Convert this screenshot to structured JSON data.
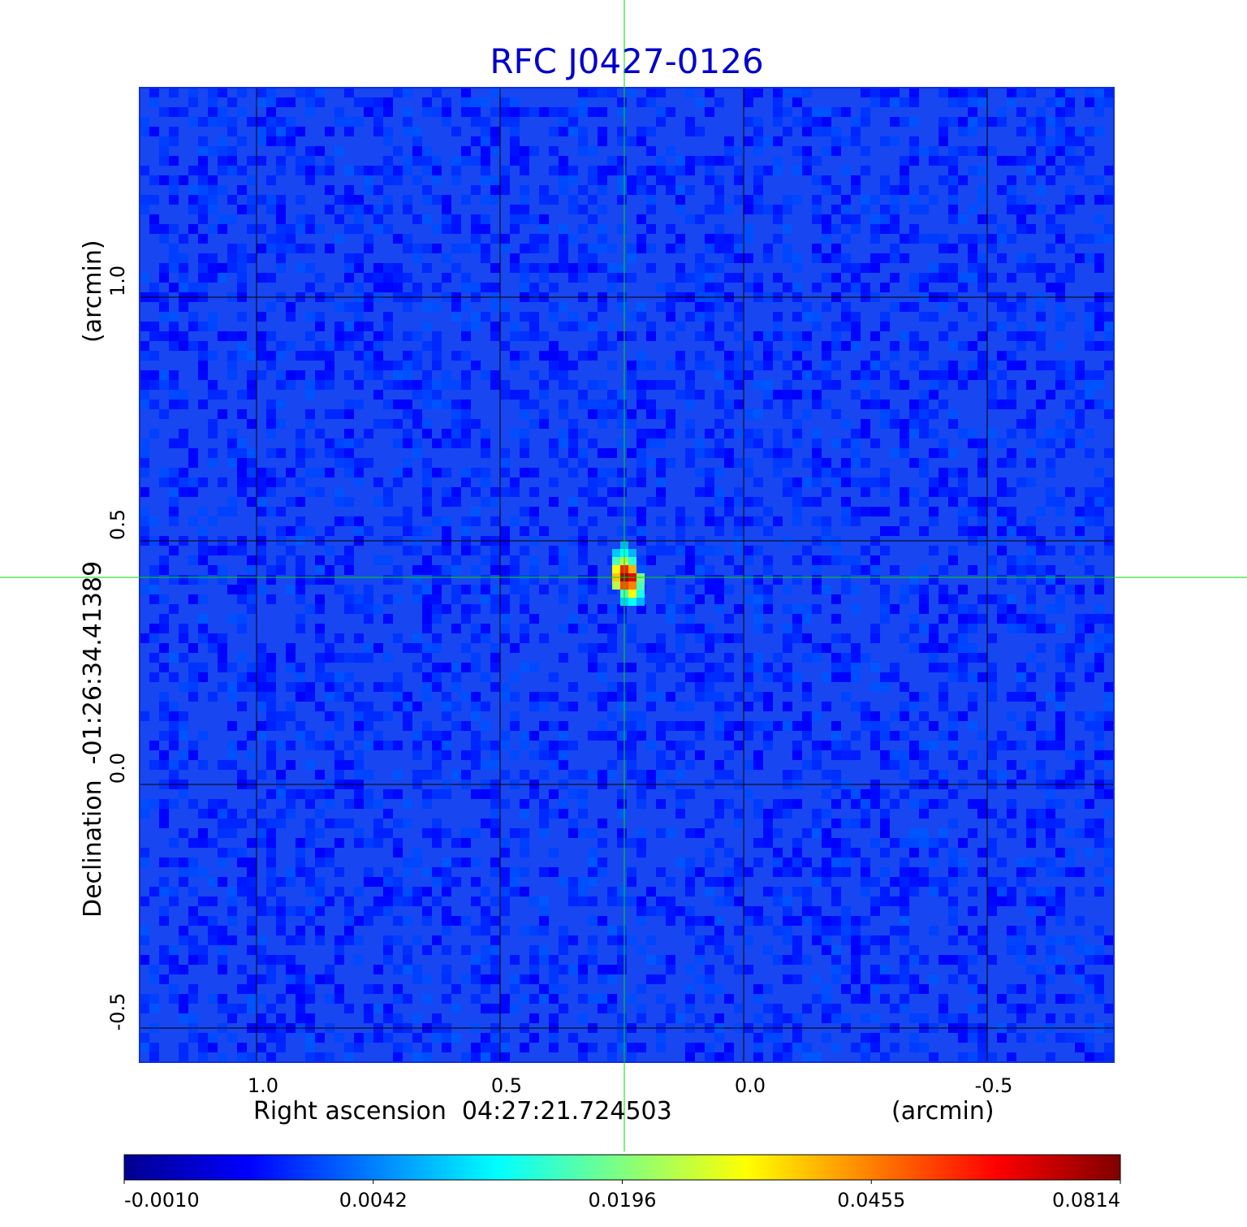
{
  "chart_data": {
    "type": "heatmap",
    "title": "RFC J0427-0126",
    "title_color": "#0000cc",
    "xlabel": "Right ascension  04:27:21.724503",
    "xunit": "(arcmin)",
    "ylabel": "Declination  -01:26:34.41389",
    "yunit": "(arcmin)",
    "xlim": [
      1.24,
      -0.76
    ],
    "ylim": [
      -0.57,
      1.43
    ],
    "x_ticks": [
      1.0,
      0.5,
      0.0,
      -0.5
    ],
    "x_tick_labels": [
      "1.0",
      "0.5",
      "0.0",
      "-0.5"
    ],
    "y_ticks": [
      1.0,
      0.5,
      0.0,
      -0.5
    ],
    "y_tick_labels": [
      "1.0",
      "0.5",
      "0.0",
      "-0.5"
    ],
    "grid": true,
    "crosshair": {
      "x": 0.245,
      "y": 0.425,
      "color": "#00dd00"
    },
    "source": {
      "x": 0.245,
      "y": 0.425,
      "peak": 0.0814
    },
    "colorbar": {
      "colormap": "jet",
      "ticks": [
        -0.001,
        0.0042,
        0.0196,
        0.0455,
        0.0814
      ],
      "tick_labels": [
        "-0.0010",
        "0.0042",
        "0.0196",
        "0.0455",
        "0.0814"
      ]
    },
    "colors": {
      "background_noise": "#1846f0",
      "peak": "#c40000",
      "grid": "#000000"
    }
  }
}
